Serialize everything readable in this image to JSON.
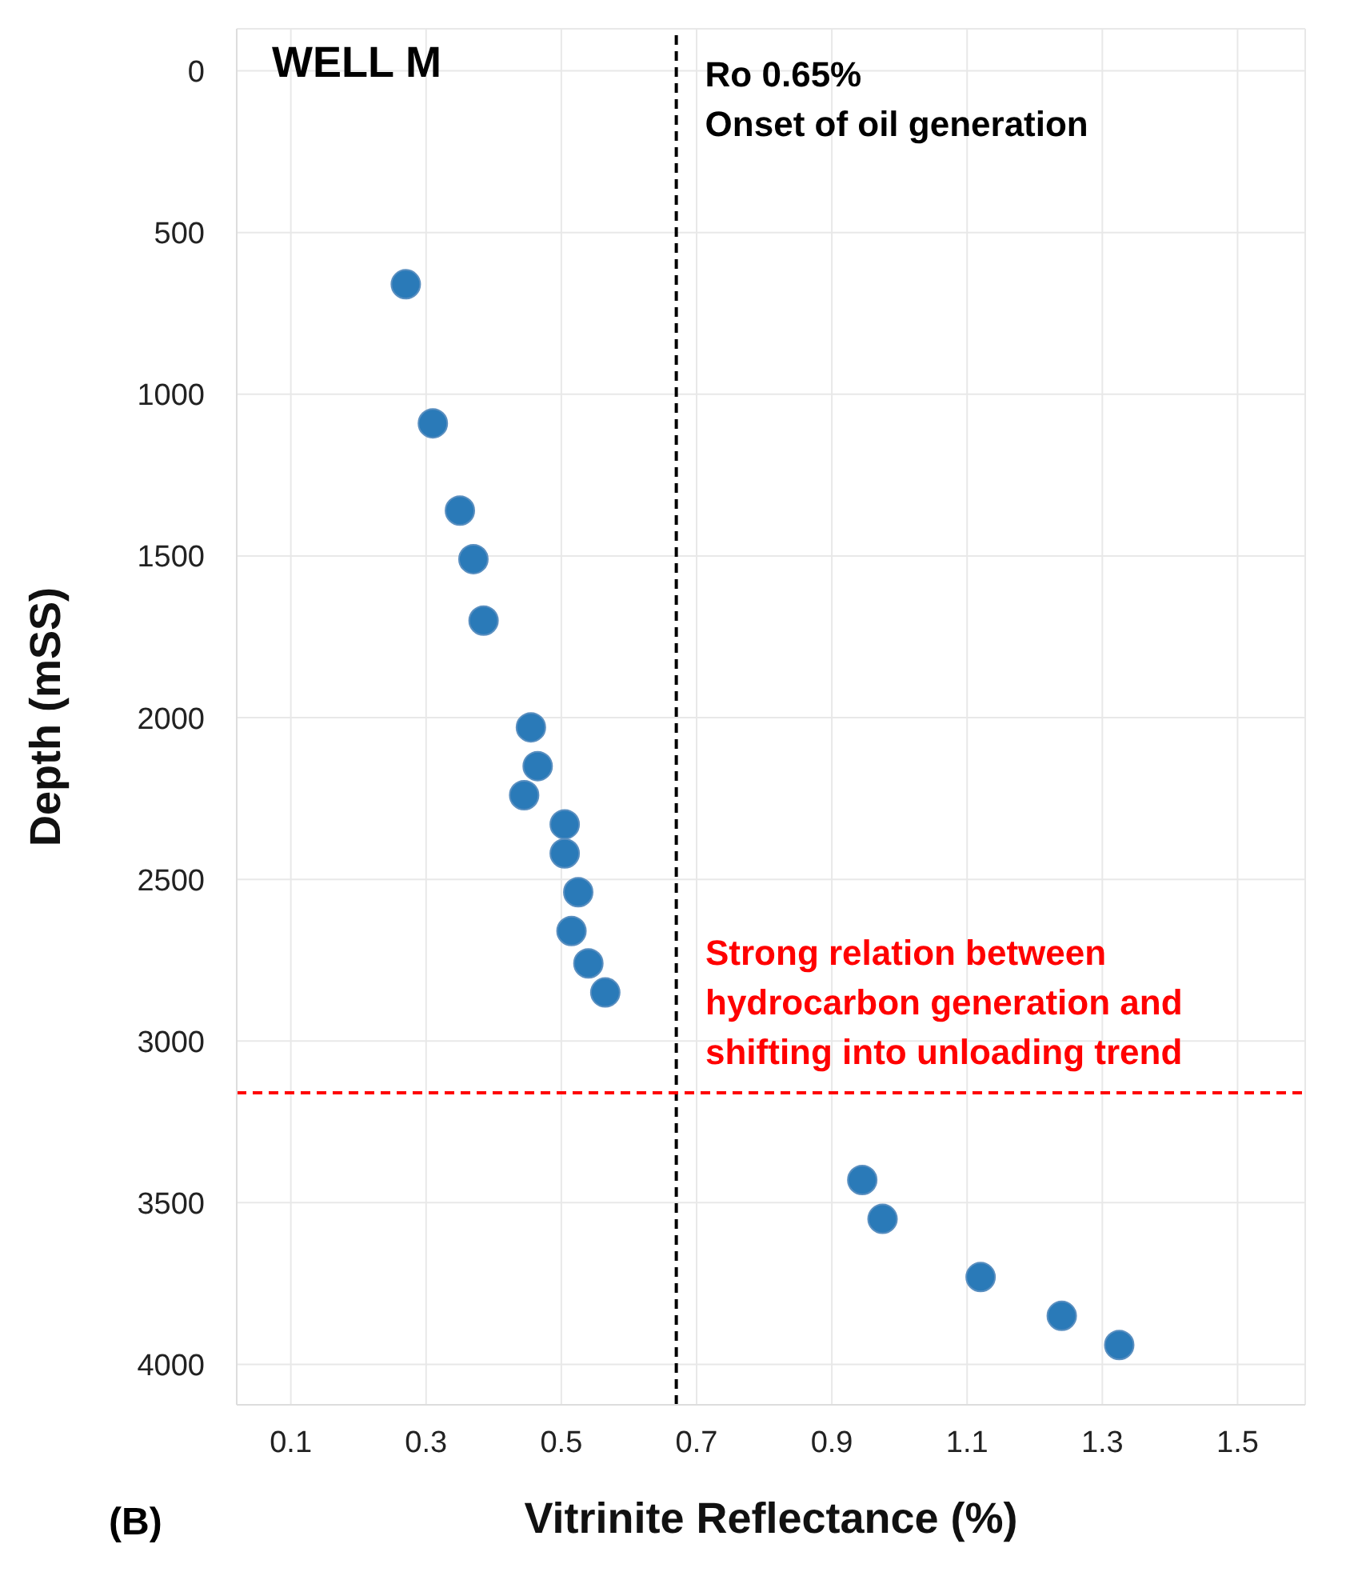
{
  "chart_data": {
    "type": "scatter",
    "title": "WELL M",
    "xlabel": "Vitrinite Reflectance  (%)",
    "ylabel": "Depth (mSS)",
    "x": [
      0.27,
      0.31,
      0.35,
      0.37,
      0.385,
      0.455,
      0.465,
      0.445,
      0.505,
      0.505,
      0.525,
      0.515,
      0.54,
      0.565,
      0.945,
      0.975,
      1.12,
      1.24,
      1.325
    ],
    "series": [
      {
        "color": "#2a7ab8",
        "values": [
          660,
          1090,
          1360,
          1510,
          1700,
          2030,
          2150,
          2240,
          2330,
          2420,
          2540,
          2660,
          2760,
          2850,
          3430,
          3550,
          3730,
          3850,
          3940
        ]
      }
    ],
    "xlim": [
      0.02,
      1.6
    ],
    "xticks": [
      0.1,
      0.3,
      0.5,
      0.7,
      0.9,
      1.1,
      1.3,
      1.5
    ],
    "ylim": [
      4125,
      -130
    ],
    "yticks": [
      0,
      500,
      1000,
      1500,
      2000,
      2500,
      3000,
      3500,
      4000
    ],
    "ref_lines": [
      {
        "axis": "x",
        "value": 0.67,
        "label": "Ro 0.65%\nOnset of oil generation",
        "color": "#000000",
        "line_style": "dashed"
      },
      {
        "axis": "y",
        "value": 3160,
        "label": "Strong relation between\nhydrocarbon generation and\nshifting into unloading trend",
        "color": "#ff0000",
        "line_style": "dashed"
      }
    ],
    "annotations": [
      "(B)"
    ],
    "grid": true,
    "marker": "circle",
    "legend": false
  }
}
